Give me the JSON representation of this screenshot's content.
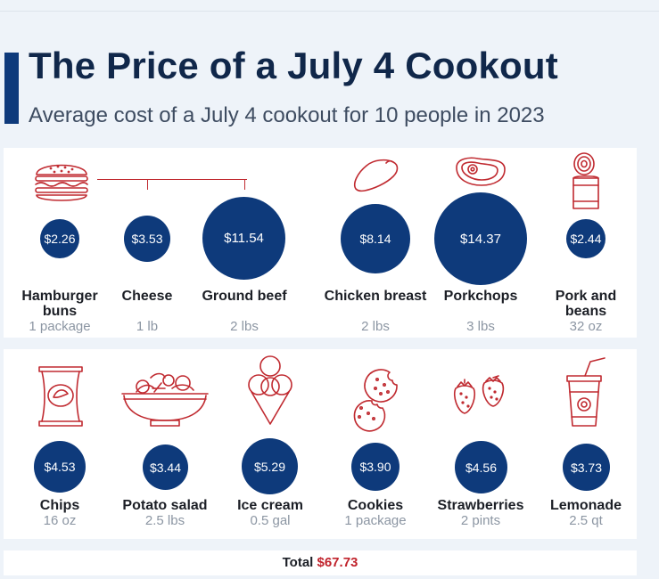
{
  "title": "The Price of a July 4 Cookout",
  "subtitle": "Average cost of a July 4 cookout for 10 people in 2023",
  "colors": {
    "circle": "#0e3a7b",
    "icon": "#c02a30",
    "total_value": "#c0232c",
    "title": "#10274a"
  },
  "chart_data": {
    "type": "bubble",
    "items": [
      {
        "name": "Hamburger buns",
        "quantity": "1 package",
        "price": 2.26,
        "label": "$2.26",
        "icon": "hamburger-icon"
      },
      {
        "name": "Cheese",
        "quantity": "1 lb",
        "price": 3.53,
        "label": "$3.53",
        "icon": ""
      },
      {
        "name": "Ground beef",
        "quantity": "2 lbs",
        "price": 11.54,
        "label": "$11.54",
        "icon": ""
      },
      {
        "name": "Chicken breast",
        "quantity": "2 lbs",
        "price": 8.14,
        "label": "$8.14",
        "icon": "chicken-breast-icon"
      },
      {
        "name": "Porkchops",
        "quantity": "3 lbs",
        "price": 14.37,
        "label": "$14.37",
        "icon": "porkchop-icon"
      },
      {
        "name": "Pork and beans",
        "quantity": "32 oz",
        "price": 2.44,
        "label": "$2.44",
        "icon": "can-icon"
      },
      {
        "name": "Chips",
        "quantity": "16 oz",
        "price": 4.53,
        "label": "$4.53",
        "icon": "chips-bag-icon"
      },
      {
        "name": "Potato salad",
        "quantity": "2.5 lbs",
        "price": 3.44,
        "label": "$3.44",
        "icon": "salad-bowl-icon"
      },
      {
        "name": "Ice cream",
        "quantity": "0.5 gal",
        "price": 5.29,
        "label": "$5.29",
        "icon": "ice-cream-cone-icon"
      },
      {
        "name": "Cookies",
        "quantity": "1 package",
        "price": 3.9,
        "label": "$3.90",
        "icon": "cookies-icon"
      },
      {
        "name": "Strawberries",
        "quantity": "2 pints",
        "price": 4.56,
        "label": "$4.56",
        "icon": "strawberries-icon"
      },
      {
        "name": "Lemonade",
        "quantity": "2.5 qt",
        "price": 3.73,
        "label": "$3.73",
        "icon": "lemonade-cup-icon"
      }
    ],
    "total_label": "Total",
    "total_value": "$67.73"
  }
}
